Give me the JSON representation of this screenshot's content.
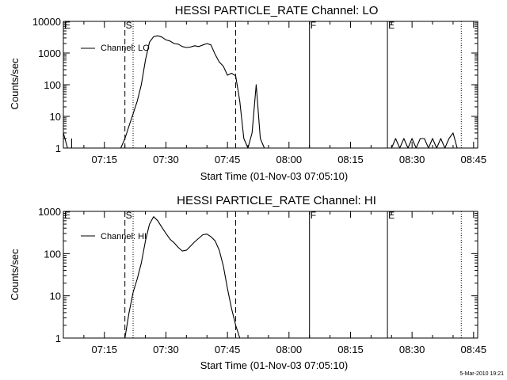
{
  "footer_stamp": "5-Mar-2010 19:21",
  "chart_data": [
    {
      "type": "line",
      "title": "HESSI PARTICLE_RATE Channel: LO",
      "xlabel": "Start Time (01-Nov-03 07:05:10)",
      "ylabel": "Counts/sec",
      "y_scale": "log",
      "ylim": [
        1,
        10000
      ],
      "yticks": [
        1,
        10,
        100,
        1000,
        10000
      ],
      "ytick_labels": [
        "1",
        "10",
        "100",
        "1000",
        "10000"
      ],
      "xlim": [
        "07:05",
        "08:46"
      ],
      "xtick_labels": [
        "07:15",
        "07:30",
        "07:45",
        "08:00",
        "08:15",
        "08:30",
        "08:45"
      ],
      "grid": false,
      "legend": {
        "label": "Channel: LO",
        "placement": "top-left"
      },
      "flags": [
        {
          "label": "E",
          "time": "07:05"
        },
        {
          "label": "S",
          "time": "07:20"
        },
        {
          "label": "F",
          "time": "08:05"
        },
        {
          "label": "E",
          "time": "08:24"
        }
      ],
      "vlines": [
        {
          "time": "07:20",
          "style": "dashed"
        },
        {
          "time": "07:22",
          "style": "dotted"
        },
        {
          "time": "07:47",
          "style": "dashed"
        },
        {
          "time": "08:05",
          "style": "solid"
        },
        {
          "time": "08:24",
          "style": "solid"
        },
        {
          "time": "08:42",
          "style": "dotted"
        }
      ],
      "series": [
        {
          "segments": [
            [
              [
                "07:05",
                3
              ],
              [
                "07:06",
                1
              ]
            ],
            [
              [
                "07:07",
                1
              ],
              [
                "07:07",
                2
              ]
            ],
            [
              [
                "07:19",
                1
              ],
              [
                "07:20",
                2
              ],
              [
                "07:21",
                5
              ],
              [
                "07:22",
                12
              ],
              [
                "07:23",
                30
              ],
              [
                "07:24",
                100
              ],
              [
                "07:25",
                600
              ],
              [
                "07:26",
                2200
              ],
              [
                "07:27",
                3300
              ],
              [
                "07:28",
                3500
              ],
              [
                "07:29",
                3200
              ],
              [
                "07:30",
                2600
              ],
              [
                "07:31",
                2400
              ],
              [
                "07:32",
                2000
              ],
              [
                "07:33",
                1900
              ],
              [
                "07:34",
                1600
              ],
              [
                "07:35",
                1500
              ],
              [
                "07:36",
                1550
              ],
              [
                "07:37",
                1700
              ],
              [
                "07:38",
                1600
              ],
              [
                "07:39",
                1800
              ],
              [
                "07:40",
                2000
              ],
              [
                "07:41",
                1800
              ],
              [
                "07:42",
                900
              ],
              [
                "07:43",
                520
              ],
              [
                "07:44",
                380
              ],
              [
                "07:45",
                200
              ],
              [
                "07:46",
                230
              ],
              [
                "07:47",
                190
              ],
              [
                "07:48",
                30
              ],
              [
                "07:49",
                2
              ],
              [
                "07:50",
                1
              ],
              [
                "07:51",
                3
              ],
              [
                "07:52",
                100
              ],
              [
                "07:53",
                2
              ],
              [
                "07:54",
                1
              ]
            ],
            [
              [
                "08:25",
                1
              ],
              [
                "08:26",
                2
              ],
              [
                "08:27",
                1
              ],
              [
                "08:28",
                2
              ],
              [
                "08:29",
                1
              ],
              [
                "08:30",
                2
              ],
              [
                "08:31",
                1
              ],
              [
                "08:32",
                2
              ],
              [
                "08:33",
                2
              ],
              [
                "08:34",
                1
              ],
              [
                "08:35",
                2
              ],
              [
                "08:36",
                1
              ],
              [
                "08:37",
                2
              ],
              [
                "08:38",
                1
              ],
              [
                "08:39",
                2
              ],
              [
                "08:40",
                3
              ],
              [
                "08:41",
                1
              ]
            ]
          ]
        }
      ]
    },
    {
      "type": "line",
      "title": "HESSI PARTICLE_RATE Channel: HI",
      "xlabel": "Start Time (01-Nov-03 07:05:10)",
      "ylabel": "Counts/sec",
      "y_scale": "log",
      "ylim": [
        1,
        1000
      ],
      "yticks": [
        1,
        10,
        100,
        1000
      ],
      "ytick_labels": [
        "1",
        "10",
        "100",
        "1000"
      ],
      "xlim": [
        "07:05",
        "08:46"
      ],
      "xtick_labels": [
        "07:15",
        "07:30",
        "07:45",
        "08:00",
        "08:15",
        "08:30",
        "08:45"
      ],
      "grid": false,
      "legend": {
        "label": "Channel: HI",
        "placement": "top-left"
      },
      "flags": [
        {
          "label": "E",
          "time": "07:05"
        },
        {
          "label": "S",
          "time": "07:20"
        },
        {
          "label": "F",
          "time": "08:05"
        },
        {
          "label": "E",
          "time": "08:24"
        }
      ],
      "vlines": [
        {
          "time": "07:20",
          "style": "dashed"
        },
        {
          "time": "07:22",
          "style": "dotted"
        },
        {
          "time": "07:47",
          "style": "dashed"
        },
        {
          "time": "08:05",
          "style": "solid"
        },
        {
          "time": "08:24",
          "style": "solid"
        },
        {
          "time": "08:42",
          "style": "dotted"
        }
      ],
      "series": [
        {
          "segments": [
            [
              [
                "07:20",
                1
              ],
              [
                "07:21",
                4
              ],
              [
                "07:22",
                12
              ],
              [
                "07:23",
                25
              ],
              [
                "07:24",
                60
              ],
              [
                "07:25",
                200
              ],
              [
                "07:26",
                500
              ],
              [
                "07:27",
                750
              ],
              [
                "07:28",
                600
              ],
              [
                "07:29",
                420
              ],
              [
                "07:30",
                300
              ],
              [
                "07:31",
                220
              ],
              [
                "07:32",
                180
              ],
              [
                "07:33",
                140
              ],
              [
                "07:34",
                115
              ],
              [
                "07:35",
                120
              ],
              [
                "07:36",
                150
              ],
              [
                "07:37",
                190
              ],
              [
                "07:38",
                230
              ],
              [
                "07:39",
                280
              ],
              [
                "07:40",
                290
              ],
              [
                "07:41",
                250
              ],
              [
                "07:42",
                200
              ],
              [
                "07:43",
                120
              ],
              [
                "07:44",
                50
              ],
              [
                "07:45",
                15
              ],
              [
                "07:46",
                5
              ],
              [
                "07:47",
                2
              ],
              [
                "07:48",
                1
              ]
            ]
          ]
        }
      ]
    }
  ]
}
